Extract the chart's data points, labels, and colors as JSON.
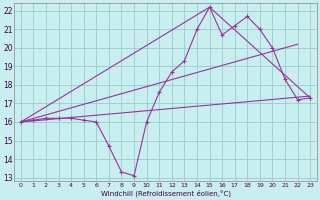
{
  "xlabel": "Windchill (Refroidissement éolien,°C)",
  "bg_color": "#c8eef0",
  "grid_color": "#99cccc",
  "line_color": "#993399",
  "xlim": [
    -0.5,
    23.5
  ],
  "ylim": [
    12.8,
    22.4
  ],
  "yticks": [
    13,
    14,
    15,
    16,
    17,
    18,
    19,
    20,
    21,
    22
  ],
  "xticks": [
    0,
    1,
    2,
    3,
    4,
    5,
    6,
    7,
    8,
    9,
    10,
    11,
    12,
    13,
    14,
    15,
    16,
    17,
    18,
    19,
    20,
    21,
    22,
    23
  ],
  "series1_x": [
    0,
    1,
    2,
    3,
    4,
    5,
    6,
    7,
    8,
    9,
    10,
    11,
    12,
    13,
    14,
    15,
    16,
    17,
    18,
    19,
    20,
    21,
    22,
    23
  ],
  "series1_y": [
    16.0,
    16.1,
    16.2,
    16.2,
    16.2,
    16.1,
    16.0,
    14.7,
    13.3,
    13.1,
    16.0,
    17.6,
    18.7,
    19.3,
    21.0,
    22.2,
    20.7,
    21.2,
    21.7,
    21.0,
    20.0,
    18.3,
    17.2,
    17.3
  ],
  "series2_x": [
    0,
    23
  ],
  "series2_y": [
    16.0,
    17.4
  ],
  "series3_x": [
    0,
    15,
    23
  ],
  "series3_y": [
    16.0,
    22.2,
    17.3
  ],
  "series4_x": [
    0,
    22
  ],
  "series4_y": [
    16.0,
    20.2
  ]
}
